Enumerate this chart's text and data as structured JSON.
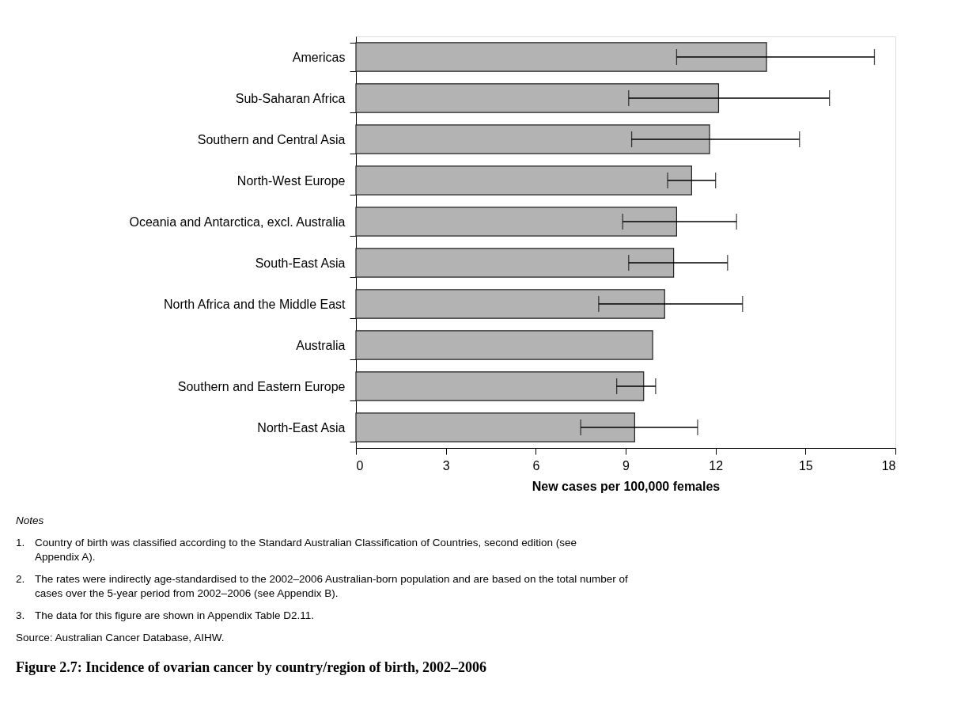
{
  "chart_data": {
    "type": "bar",
    "orientation": "horizontal",
    "title": "Figure 2.7: Incidence of ovarian cancer by country/region of birth, 2002–2006",
    "xlabel": "New cases per 100,000 females",
    "categories": [
      "Americas",
      "Sub-Saharan Africa",
      "Southern and Central Asia",
      "North-West Europe",
      "Oceania and Antarctica, excl. Australia",
      "South-East Asia",
      "North Africa and the Middle East",
      "Australia",
      "Southern and Eastern Europe",
      "North-East Asia"
    ],
    "values": [
      13.7,
      12.1,
      11.8,
      11.2,
      10.7,
      10.6,
      10.3,
      9.9,
      9.6,
      9.3
    ],
    "errors": [
      [
        10.7,
        17.3
      ],
      [
        9.1,
        15.8
      ],
      [
        9.2,
        14.8
      ],
      [
        10.4,
        12.0
      ],
      [
        8.9,
        12.7
      ],
      [
        9.1,
        12.4
      ],
      [
        8.1,
        12.9
      ],
      null,
      [
        8.7,
        10.0
      ],
      [
        7.5,
        11.4
      ]
    ],
    "color": "#b3b3b3",
    "xlim": [
      0,
      18
    ],
    "xticks": [
      0,
      3,
      6,
      9,
      12,
      15,
      18
    ],
    "grid": false,
    "annotations": [
      "Notes",
      "1.\tCountry of birth was classified according to the Standard Australian Classification of Countries, second edition (see Appendix A).",
      "2.\tThe rates were indirectly age-standardised to the 2002–2006 Australian-born population and are based on the total number of cases over the 5-year period from 2002–2006 (see Appendix B).",
      "3.\tThe data for this figure are shown in Appendix Table D2.11.",
      "Source: Australian Cancer Database, AIHW."
    ]
  }
}
